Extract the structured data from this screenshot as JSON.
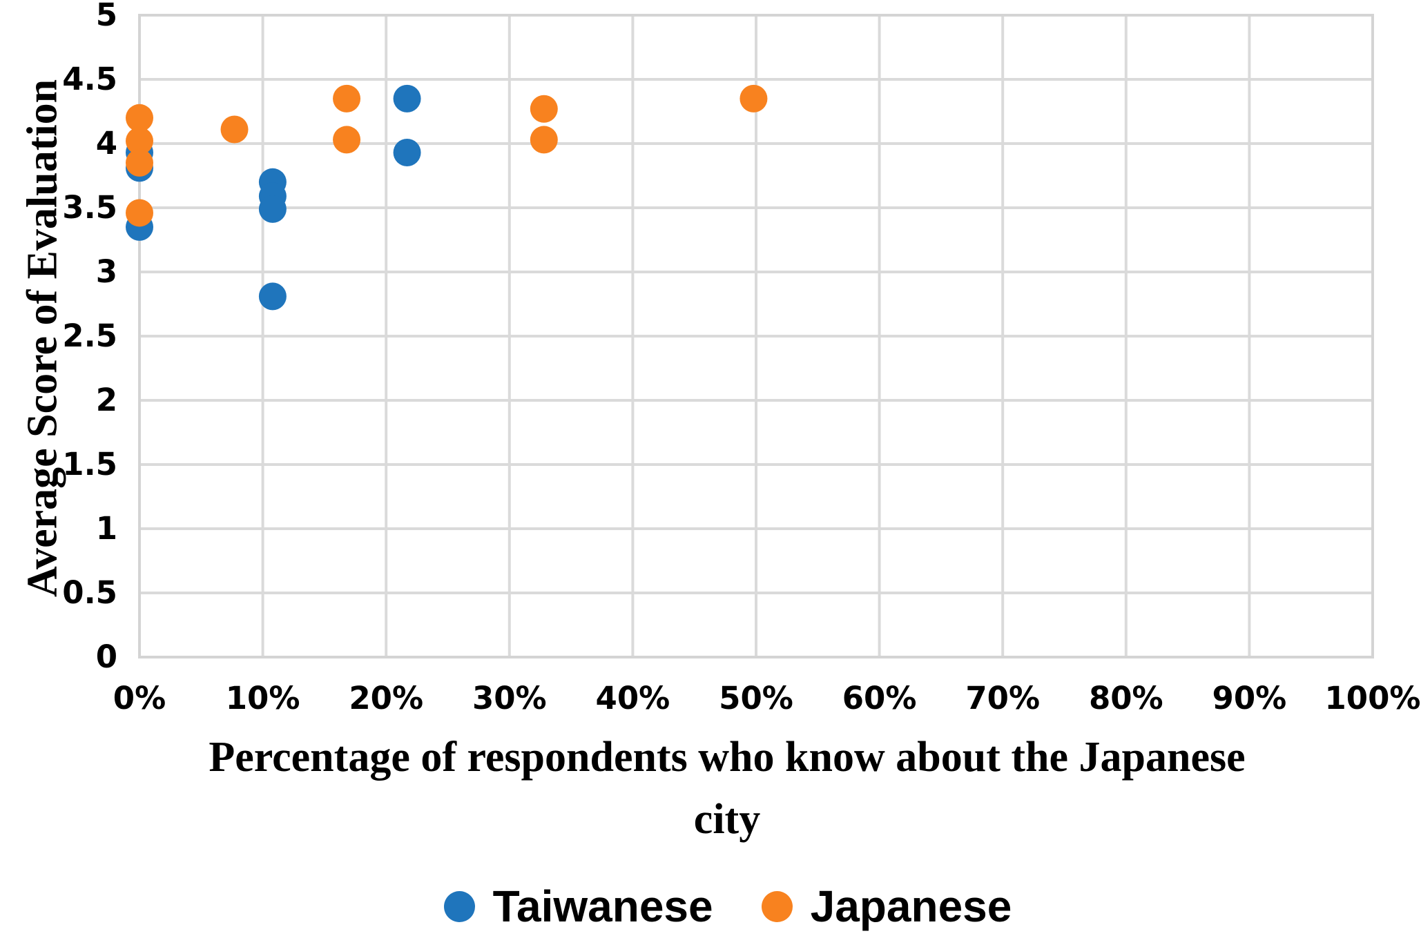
{
  "chart_data": {
    "type": "scatter",
    "title": "",
    "xlabel": "Percentage of respondents who know about the Japanese city",
    "xlabel_lines": [
      "Percentage of respondents who know about the Japanese",
      "city"
    ],
    "ylabel": "Average Score of Evaluation",
    "xlim": [
      0,
      100
    ],
    "ylim": [
      0,
      5
    ],
    "grid": true,
    "legend_position": "bottom",
    "gridline_color": "#DADADA",
    "frame_color": "#D4D4D4",
    "x_ticks": [
      {
        "label": "0%",
        "value": 0
      },
      {
        "label": "10%",
        "value": 10
      },
      {
        "label": "20%",
        "value": 20
      },
      {
        "label": "30%",
        "value": 30
      },
      {
        "label": "40%",
        "value": 40
      },
      {
        "label": "50%",
        "value": 50
      },
      {
        "label": "60%",
        "value": 60
      },
      {
        "label": "70%",
        "value": 70
      },
      {
        "label": "80%",
        "value": 80
      },
      {
        "label": "90%",
        "value": 90
      },
      {
        "label": "100%",
        "value": 100
      }
    ],
    "y_ticks": [
      {
        "label": "0",
        "value": 0
      },
      {
        "label": "0.5",
        "value": 0.5
      },
      {
        "label": "1",
        "value": 1
      },
      {
        "label": "1.5",
        "value": 1.5
      },
      {
        "label": "2",
        "value": 2
      },
      {
        "label": "2.5",
        "value": 2.5
      },
      {
        "label": "3",
        "value": 3
      },
      {
        "label": "3.5",
        "value": 3.5
      },
      {
        "label": "4",
        "value": 4
      },
      {
        "label": "4.5",
        "value": 4.5
      },
      {
        "label": "5",
        "value": 5
      }
    ],
    "series": [
      {
        "name": "Taiwanese",
        "color": "#1F75BC",
        "points": [
          {
            "x": 0,
            "y": 3.93
          },
          {
            "x": 0,
            "y": 3.81
          },
          {
            "x": 0,
            "y": 3.35
          },
          {
            "x": 10.8,
            "y": 3.7
          },
          {
            "x": 10.8,
            "y": 3.59
          },
          {
            "x": 10.8,
            "y": 3.49
          },
          {
            "x": 10.8,
            "y": 2.81
          },
          {
            "x": 21.7,
            "y": 4.35
          },
          {
            "x": 21.7,
            "y": 3.93
          }
        ]
      },
      {
        "name": "Japanese",
        "color": "#F8821F",
        "points": [
          {
            "x": 0,
            "y": 4.2
          },
          {
            "x": 0,
            "y": 4.02
          },
          {
            "x": 0,
            "y": 3.85
          },
          {
            "x": 0,
            "y": 3.46
          },
          {
            "x": 7.7,
            "y": 4.11
          },
          {
            "x": 16.8,
            "y": 4.35
          },
          {
            "x": 16.8,
            "y": 4.03
          },
          {
            "x": 32.8,
            "y": 4.27
          },
          {
            "x": 32.8,
            "y": 4.03
          },
          {
            "x": 49.8,
            "y": 4.35
          }
        ]
      }
    ]
  }
}
